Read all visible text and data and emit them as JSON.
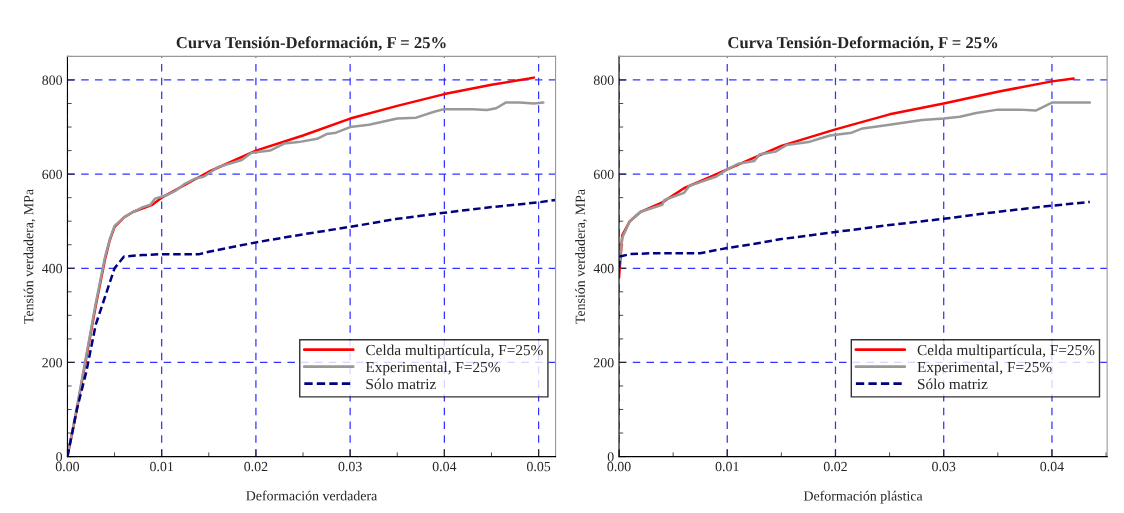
{
  "chart_data": [
    {
      "type": "line",
      "title": "Curva Tensión-Deformación, F = 25%",
      "xlabel": "Deformación verdadera",
      "ylabel": "Tensión verdadera, MPa",
      "xlim": [
        0,
        0.0518
      ],
      "ylim": [
        0,
        850
      ],
      "xticks": [
        {
          "value": 0,
          "label": "0.00"
        },
        {
          "value": 0.01,
          "label": "0.01"
        },
        {
          "value": 0.02,
          "label": "0.02"
        },
        {
          "value": 0.03,
          "label": "0.03"
        },
        {
          "value": 0.04,
          "label": "0.04"
        },
        {
          "value": 0.05,
          "label": "0.05"
        }
      ],
      "yticks": [
        0,
        200,
        400,
        600,
        800
      ],
      "grid": true,
      "legend": "lower right",
      "line_style": "solid",
      "marker": "none",
      "series": [
        {
          "name": "Celda multipartícula, F=25%",
          "color": "#ff0000",
          "x": [
            0,
            0.001,
            0.002,
            0.003,
            0.004,
            0.0045,
            0.005,
            0.006,
            0.007,
            0.009,
            0.01,
            0.015,
            0.02,
            0.025,
            0.03,
            0.035,
            0.04,
            0.045,
            0.049,
            0.0495
          ],
          "values": [
            0,
            100,
            210,
            320,
            420,
            460,
            488,
            508,
            520,
            535,
            550,
            605,
            650,
            682,
            718,
            745,
            770,
            790,
            803,
            805
          ]
        },
        {
          "name": "Experimental, F=25%",
          "color": "#999999",
          "x": [
            0,
            0.001,
            0.002,
            0.003,
            0.004,
            0.0045,
            0.005,
            0.006,
            0.007,
            0.008,
            0.0088,
            0.0093,
            0.0105,
            0.0115,
            0.0125,
            0.0135,
            0.0145,
            0.016,
            0.0185,
            0.0195,
            0.0215,
            0.023,
            0.0245,
            0.0265,
            0.0275,
            0.0285,
            0.03,
            0.032,
            0.035,
            0.037,
            0.039,
            0.04,
            0.043,
            0.0445,
            0.0455,
            0.0465,
            0.048,
            0.0495,
            0.0505
          ],
          "values": [
            0,
            105,
            215,
            325,
            425,
            462,
            490,
            508,
            520,
            530,
            535,
            548,
            555,
            565,
            580,
            590,
            595,
            615,
            630,
            645,
            650,
            665,
            668,
            675,
            685,
            688,
            700,
            705,
            718,
            720,
            733,
            738,
            738,
            736,
            740,
            752,
            752,
            750,
            752
          ]
        },
        {
          "name": "Sólo matriz",
          "color": "#000080",
          "line_style": "dashed",
          "x": [
            0,
            0.001,
            0.002,
            0.003,
            0.004,
            0.005,
            0.006,
            0.008,
            0.01,
            0.014,
            0.015,
            0.02,
            0.025,
            0.03,
            0.035,
            0.04,
            0.045,
            0.05,
            0.0518
          ],
          "values": [
            0,
            100,
            180,
            280,
            340,
            400,
            425,
            428,
            430,
            430,
            435,
            455,
            472,
            488,
            505,
            518,
            530,
            540,
            545
          ]
        }
      ]
    },
    {
      "type": "line",
      "title": "Curva Tensión-Deformación, F = 25%",
      "xlabel": "Deformación plástica",
      "ylabel": "Tensión verdadera, MPa",
      "xlim": [
        0,
        0.0451
      ],
      "ylim": [
        0,
        850
      ],
      "xticks": [
        {
          "value": 0,
          "label": "0.00"
        },
        {
          "value": 0.01,
          "label": "0.01"
        },
        {
          "value": 0.02,
          "label": "0.02"
        },
        {
          "value": 0.03,
          "label": "0.03"
        },
        {
          "value": 0.04,
          "label": "0.04"
        }
      ],
      "yticks": [
        0,
        200,
        400,
        600,
        800
      ],
      "grid": true,
      "legend": "lower right",
      "line_style": "solid",
      "marker": "none",
      "series": [
        {
          "name": "Celda multipartícula, F=25%",
          "color": "#ff0000",
          "x": [
            0,
            0.0003,
            0.001,
            0.002,
            0.004,
            0.006,
            0.008,
            0.01,
            0.015,
            0.02,
            0.025,
            0.03,
            0.035,
            0.04,
            0.042
          ],
          "values": [
            380,
            470,
            500,
            520,
            540,
            570,
            590,
            610,
            660,
            695,
            727,
            750,
            775,
            797,
            803
          ]
        },
        {
          "name": "Experimental, F=25%",
          "color": "#999999",
          "x": [
            0,
            0.0003,
            0.001,
            0.002,
            0.004,
            0.0042,
            0.006,
            0.0065,
            0.009,
            0.01,
            0.011,
            0.0125,
            0.013,
            0.0145,
            0.0155,
            0.0175,
            0.0185,
            0.0195,
            0.0215,
            0.0225,
            0.025,
            0.028,
            0.03,
            0.0315,
            0.033,
            0.035,
            0.037,
            0.0385,
            0.04,
            0.042,
            0.0435
          ],
          "values": [
            400,
            465,
            500,
            520,
            535,
            545,
            560,
            575,
            595,
            610,
            622,
            628,
            642,
            648,
            662,
            668,
            675,
            682,
            688,
            697,
            705,
            715,
            718,
            722,
            730,
            737,
            737,
            735,
            752,
            752,
            752
          ]
        },
        {
          "name": "Sólo matriz",
          "color": "#000080",
          "line_style": "dashed",
          "x": [
            0,
            0.0001,
            0.001,
            0.003,
            0.0075,
            0.01,
            0.012,
            0.015,
            0.02,
            0.025,
            0.03,
            0.035,
            0.04,
            0.0435
          ],
          "values": [
            400,
            425,
            430,
            432,
            432,
            443,
            450,
            462,
            477,
            492,
            505,
            520,
            533,
            541
          ]
        }
      ]
    }
  ]
}
